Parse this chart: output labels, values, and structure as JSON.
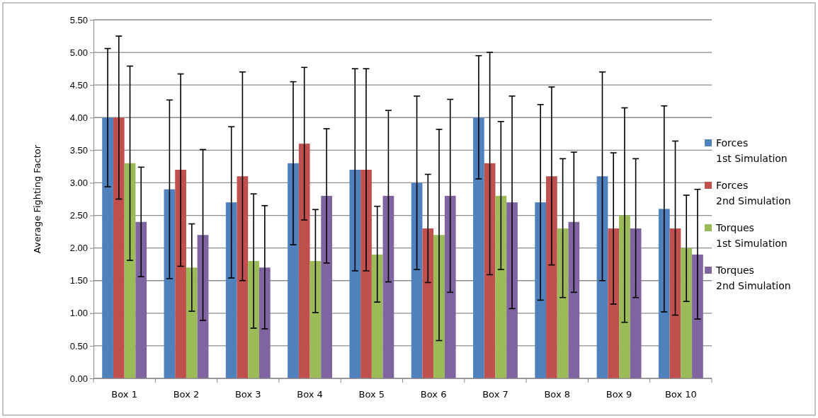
{
  "chart_data": {
    "type": "bar",
    "ylabel": "Average Fighting Factor",
    "categories": [
      "Box 1",
      "Box 2",
      "Box 3",
      "Box 4",
      "Box 5",
      "Box 6",
      "Box 7",
      "Box 8",
      "Box 9",
      "Box 10"
    ],
    "series": [
      {
        "name": "Forces 1st Simulation",
        "color": "#4f81bd",
        "values": [
          4.0,
          2.9,
          2.7,
          3.3,
          3.2,
          3.0,
          4.0,
          2.7,
          3.1,
          2.6
        ],
        "errors": [
          [
            2.94,
            5.06
          ],
          [
            1.53,
            4.27
          ],
          [
            1.54,
            3.86
          ],
          [
            2.05,
            4.55
          ],
          [
            1.65,
            4.75
          ],
          [
            1.67,
            4.33
          ],
          [
            3.06,
            4.95
          ],
          [
            1.2,
            4.2
          ],
          [
            1.5,
            4.7
          ],
          [
            1.02,
            4.18
          ]
        ]
      },
      {
        "name": "Forces 2nd Simulation",
        "color": "#c0504d",
        "values": [
          4.0,
          3.2,
          3.1,
          3.6,
          3.2,
          2.3,
          3.3,
          3.1,
          2.3,
          2.3
        ],
        "errors": [
          [
            2.75,
            5.25
          ],
          [
            1.72,
            4.67
          ],
          [
            1.5,
            4.7
          ],
          [
            2.43,
            4.77
          ],
          [
            1.65,
            4.75
          ],
          [
            1.47,
            3.13
          ],
          [
            1.59,
            5.0
          ],
          [
            1.74,
            4.47
          ],
          [
            1.14,
            3.46
          ],
          [
            0.97,
            3.64
          ]
        ]
      },
      {
        "name": "Torques 1st Simulation",
        "color": "#9bbb59",
        "values": [
          3.3,
          1.7,
          1.8,
          1.8,
          1.9,
          2.2,
          2.8,
          2.3,
          2.5,
          2.0
        ],
        "errors": [
          [
            1.81,
            4.79
          ],
          [
            1.03,
            2.37
          ],
          [
            0.77,
            2.83
          ],
          [
            1.01,
            2.59
          ],
          [
            1.17,
            2.64
          ],
          [
            0.58,
            3.82
          ],
          [
            1.67,
            3.94
          ],
          [
            1.24,
            3.37
          ],
          [
            0.86,
            4.15
          ],
          [
            1.18,
            2.81
          ]
        ]
      },
      {
        "name": "Torques 2nd Simulation",
        "color": "#8064a2",
        "values": [
          2.4,
          2.2,
          1.7,
          2.8,
          2.8,
          2.8,
          2.7,
          2.4,
          2.3,
          1.9
        ],
        "errors": [
          [
            1.56,
            3.24
          ],
          [
            0.89,
            3.51
          ],
          [
            0.76,
            2.65
          ],
          [
            1.77,
            3.83
          ],
          [
            1.48,
            4.11
          ],
          [
            1.32,
            4.28
          ],
          [
            1.07,
            4.33
          ],
          [
            1.32,
            3.47
          ],
          [
            1.24,
            3.37
          ],
          [
            0.91,
            2.9
          ]
        ]
      }
    ],
    "ylim": [
      0,
      5.5
    ],
    "yticks": [
      {
        "value": 0,
        "label": "0.00"
      },
      {
        "value": 0.5,
        "label": "0.50"
      },
      {
        "value": 1,
        "label": "1.00"
      },
      {
        "value": 1.5,
        "label": "1.50"
      },
      {
        "value": 2,
        "label": "2.00"
      },
      {
        "value": 2.5,
        "label": "2.50"
      },
      {
        "value": 3,
        "label": "3.00"
      },
      {
        "value": 3.5,
        "label": "3.50"
      },
      {
        "value": 4,
        "label": "4.00"
      },
      {
        "value": 4.5,
        "label": "4.50"
      },
      {
        "value": 5,
        "label": "5.00"
      },
      {
        "value": 5.5,
        "label": "5.50"
      }
    ],
    "grid": "y",
    "legend": "right"
  }
}
